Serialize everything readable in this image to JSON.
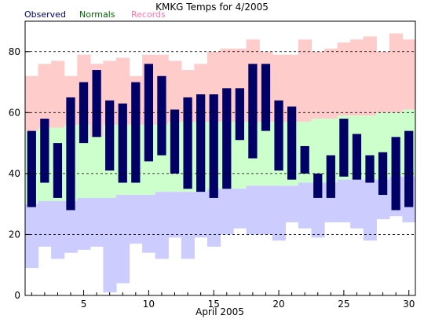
{
  "chart_data": {
    "type": "bar",
    "title": "KMKG Temps for 4/2005",
    "xlabel": "April 2005",
    "ylabel": "",
    "ylim": [
      0,
      90
    ],
    "xlim": [
      0.5,
      30.5
    ],
    "grid": "dashed horizontal at 20, 40, 60, 80",
    "legend": [
      {
        "name": "Observed",
        "color": "#000066"
      },
      {
        "name": "Normals",
        "color": "#006600"
      },
      {
        "name": "Records",
        "color": "#ff77aa"
      }
    ],
    "y_ticks": [
      0,
      20,
      40,
      60,
      80
    ],
    "x_ticks": [
      5,
      10,
      15,
      20,
      25,
      30
    ],
    "days": [
      1,
      2,
      3,
      4,
      5,
      6,
      7,
      8,
      9,
      10,
      11,
      12,
      13,
      14,
      15,
      16,
      17,
      18,
      19,
      20,
      21,
      22,
      23,
      24,
      25,
      26,
      27,
      28,
      29,
      30
    ],
    "series": [
      {
        "name": "Records high",
        "color": "#ffcccc",
        "values": [
          72,
          76,
          77,
          72,
          79,
          76,
          77,
          78,
          72,
          79,
          79,
          77,
          74,
          76,
          80,
          81,
          81,
          84,
          80,
          79,
          79,
          84,
          80,
          81,
          83,
          84,
          85,
          80,
          86,
          84
        ]
      },
      {
        "name": "Normals high",
        "color": "#ccffcc",
        "values": [
          54,
          55,
          55,
          56,
          56,
          52,
          56,
          56,
          56,
          56,
          56,
          57,
          57,
          57,
          57,
          57,
          57,
          57,
          57,
          57,
          57,
          57,
          58,
          58,
          59,
          59,
          59,
          60,
          60,
          61
        ]
      },
      {
        "name": "Normals low",
        "color": "#ccccff",
        "values": [
          30,
          31,
          31,
          31,
          32,
          32,
          32,
          33,
          33,
          33,
          34,
          34,
          34,
          34,
          35,
          35,
          35,
          36,
          36,
          36,
          36,
          37,
          37,
          37,
          38,
          38,
          38,
          38,
          39,
          39
        ]
      },
      {
        "name": "Records low",
        "color": "#ffffff",
        "values": [
          9,
          16,
          12,
          14,
          15,
          16,
          1,
          4,
          17,
          14,
          12,
          19,
          12,
          19,
          16,
          20,
          22,
          20,
          20,
          18,
          24,
          22,
          19,
          24,
          24,
          22,
          18,
          25,
          26,
          24
        ]
      },
      {
        "name": "Observed high",
        "color": "#000066",
        "values": [
          54,
          58,
          50,
          65,
          70,
          74,
          64,
          63,
          70,
          76,
          72,
          61,
          65,
          66,
          66,
          68,
          68,
          76,
          76,
          64,
          62,
          49,
          40,
          46,
          58,
          53,
          46,
          47,
          52,
          54
        ]
      },
      {
        "name": "Observed low",
        "color": "#000066",
        "values": [
          29,
          37,
          32,
          28,
          50,
          52,
          41,
          37,
          37,
          44,
          46,
          40,
          35,
          34,
          32,
          35,
          51,
          45,
          54,
          41,
          38,
          40,
          32,
          32,
          39,
          38,
          37,
          33,
          28,
          29
        ]
      }
    ]
  }
}
